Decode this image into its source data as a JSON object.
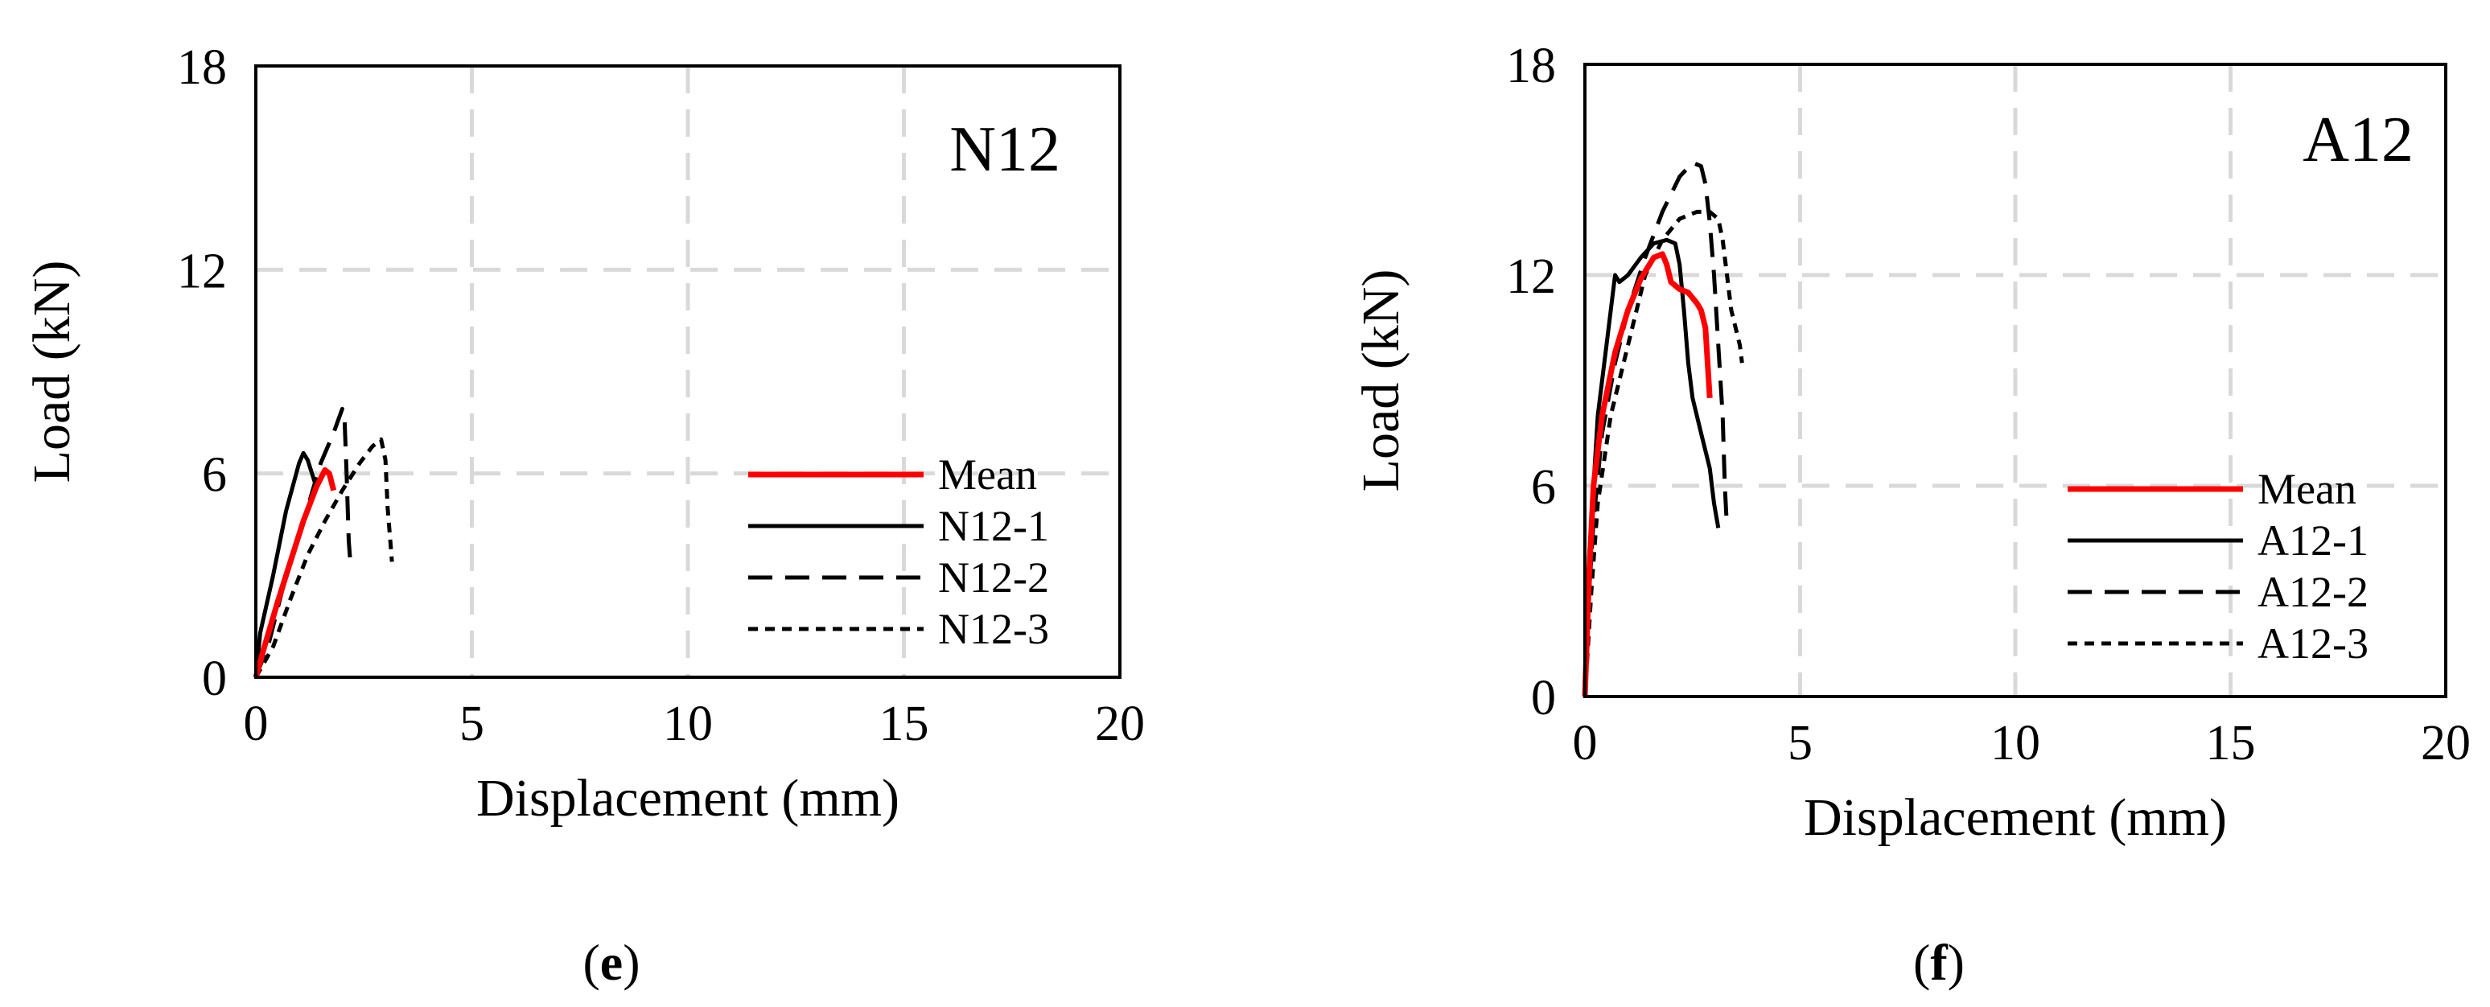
{
  "chart_data": [
    {
      "type": "line",
      "panel_label": "N12",
      "caption_letter": "e",
      "xlabel": "Displacement (mm)",
      "ylabel": "Load (kN)",
      "xlim": [
        0,
        20
      ],
      "ylim": [
        0,
        18
      ],
      "xticks": [
        0,
        5,
        10,
        15,
        20
      ],
      "yticks": [
        0,
        6,
        12,
        18
      ],
      "grid": true,
      "legend_position": "bottom-right",
      "series": [
        {
          "name": "Mean",
          "style": "solid",
          "color": "#ff0000",
          "points": [
            [
              0,
              0
            ],
            [
              0.2,
              0.9
            ],
            [
              0.5,
              2.2
            ],
            [
              0.8,
              3.4
            ],
            [
              1.1,
              4.6
            ],
            [
              1.4,
              5.6
            ],
            [
              1.6,
              6.1
            ],
            [
              1.7,
              6.0
            ],
            [
              1.8,
              5.5
            ]
          ]
        },
        {
          "name": "N12-1",
          "style": "solid",
          "color": "#000000",
          "points": [
            [
              0,
              0
            ],
            [
              0.1,
              1.3
            ],
            [
              0.4,
              3.0
            ],
            [
              0.7,
              4.9
            ],
            [
              1.0,
              6.3
            ],
            [
              1.1,
              6.6
            ],
            [
              1.2,
              6.4
            ],
            [
              1.35,
              5.8
            ],
            [
              1.4,
              5.6
            ]
          ]
        },
        {
          "name": "N12-2",
          "style": "dashed",
          "color": "#000000",
          "points": [
            [
              0,
              0
            ],
            [
              0.3,
              1.0
            ],
            [
              0.6,
              2.5
            ],
            [
              0.9,
              3.8
            ],
            [
              1.2,
              5.0
            ],
            [
              1.5,
              6.3
            ],
            [
              1.8,
              7.2
            ],
            [
              2.0,
              7.9
            ],
            [
              2.05,
              7.7
            ],
            [
              2.1,
              6.0
            ],
            [
              2.15,
              4.0
            ],
            [
              2.2,
              3.2
            ]
          ]
        },
        {
          "name": "N12-3",
          "style": "dotted",
          "color": "#000000",
          "points": [
            [
              0,
              0
            ],
            [
              0.4,
              0.9
            ],
            [
              0.8,
              2.3
            ],
            [
              1.2,
              3.6
            ],
            [
              1.6,
              4.6
            ],
            [
              2.0,
              5.5
            ],
            [
              2.4,
              6.3
            ],
            [
              2.7,
              6.8
            ],
            [
              2.9,
              7.0
            ],
            [
              3.0,
              6.4
            ],
            [
              3.05,
              5.0
            ],
            [
              3.1,
              4.2
            ],
            [
              3.15,
              3.4
            ]
          ]
        }
      ]
    },
    {
      "type": "line",
      "panel_label": "A12",
      "caption_letter": "f",
      "xlabel": "Displacement (mm)",
      "ylabel": "Load (kN)",
      "xlim": [
        0,
        20
      ],
      "ylim": [
        0,
        18
      ],
      "xticks": [
        0,
        5,
        10,
        15,
        20
      ],
      "yticks": [
        0,
        6,
        12,
        18
      ],
      "grid": true,
      "legend_position": "bottom-right",
      "series": [
        {
          "name": "Mean",
          "style": "solid",
          "color": "#ff0000",
          "points": [
            [
              0,
              0
            ],
            [
              0.1,
              3.5
            ],
            [
              0.2,
              6.0
            ],
            [
              0.4,
              8.0
            ],
            [
              0.7,
              9.8
            ],
            [
              1.0,
              11.0
            ],
            [
              1.3,
              11.9
            ],
            [
              1.6,
              12.5
            ],
            [
              1.8,
              12.6
            ],
            [
              1.9,
              12.3
            ],
            [
              2.0,
              11.8
            ],
            [
              2.2,
              11.6
            ],
            [
              2.4,
              11.5
            ],
            [
              2.6,
              11.2
            ],
            [
              2.7,
              11.0
            ],
            [
              2.8,
              10.5
            ],
            [
              2.9,
              8.5
            ]
          ]
        },
        {
          "name": "A12-1",
          "style": "solid",
          "color": "#000000",
          "points": [
            [
              0,
              0
            ],
            [
              0.1,
              4.0
            ],
            [
              0.2,
              6.0
            ],
            [
              0.3,
              8.0
            ],
            [
              0.5,
              10.0
            ],
            [
              0.7,
              12.0
            ],
            [
              0.8,
              11.8
            ],
            [
              1.0,
              12.0
            ],
            [
              1.3,
              12.5
            ],
            [
              1.6,
              12.9
            ],
            [
              1.9,
              13.0
            ],
            [
              2.1,
              12.9
            ],
            [
              2.2,
              12.3
            ],
            [
              2.3,
              11.0
            ],
            [
              2.4,
              9.5
            ],
            [
              2.5,
              8.5
            ],
            [
              2.7,
              7.5
            ],
            [
              2.9,
              6.5
            ],
            [
              3.0,
              5.5
            ],
            [
              3.1,
              4.8
            ]
          ]
        },
        {
          "name": "A12-2",
          "style": "dashed",
          "color": "#000000",
          "points": [
            [
              0,
              0
            ],
            [
              0.1,
              3.0
            ],
            [
              0.2,
              5.0
            ],
            [
              0.4,
              7.5
            ],
            [
              0.7,
              9.5
            ],
            [
              1.0,
              11.0
            ],
            [
              1.4,
              12.5
            ],
            [
              1.8,
              13.8
            ],
            [
              2.2,
              14.8
            ],
            [
              2.5,
              15.2
            ],
            [
              2.7,
              15.1
            ],
            [
              2.8,
              14.6
            ],
            [
              2.9,
              13.5
            ],
            [
              3.0,
              12.0
            ],
            [
              3.1,
              10.0
            ],
            [
              3.2,
              8.0
            ],
            [
              3.25,
              6.0
            ],
            [
              3.3,
              4.8
            ]
          ]
        },
        {
          "name": "A12-3",
          "style": "dotted",
          "color": "#000000",
          "points": [
            [
              0,
              0
            ],
            [
              0.15,
              3.0
            ],
            [
              0.3,
              5.5
            ],
            [
              0.6,
              8.0
            ],
            [
              1.0,
              10.0
            ],
            [
              1.4,
              12.0
            ],
            [
              1.8,
              13.0
            ],
            [
              2.2,
              13.6
            ],
            [
              2.6,
              13.8
            ],
            [
              2.9,
              13.8
            ],
            [
              3.1,
              13.6
            ],
            [
              3.2,
              13.0
            ],
            [
              3.3,
              12.0
            ],
            [
              3.4,
              11.0
            ],
            [
              3.5,
              10.5
            ],
            [
              3.6,
              10.0
            ],
            [
              3.65,
              9.5
            ]
          ]
        }
      ]
    }
  ]
}
